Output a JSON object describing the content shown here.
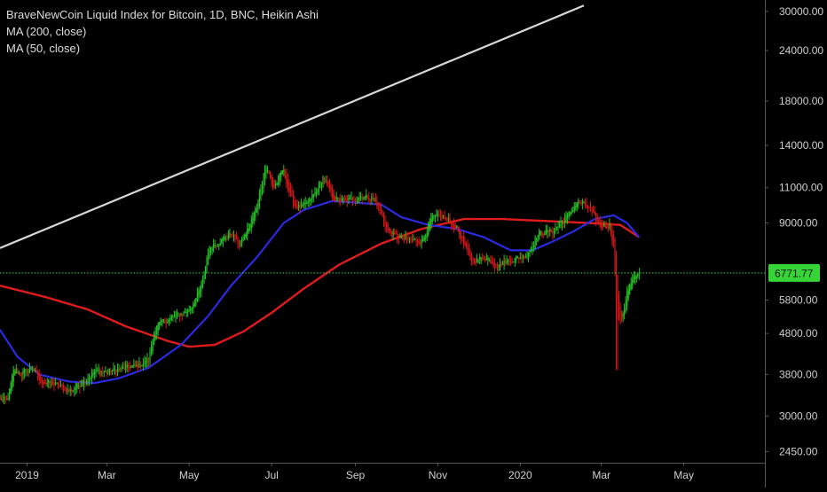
{
  "legend": {
    "title": "BraveNewCoin Liquid Index for Bitcoin, 1D, BNC, Heikin Ashi",
    "ma200": "MA (200, close)",
    "ma50": "MA (50, close)"
  },
  "colors": {
    "background": "#000000",
    "up_candle": "#26c026",
    "down_candle": "#d41818",
    "ma200": "#e01b1b",
    "ma50": "#2a2ae0",
    "trendline": "#d8d8d8",
    "price_line": "#37d437",
    "axis_text": "#cfcfcf",
    "axis_line": "#555555"
  },
  "price_axis": {
    "labels": [
      "30000.00",
      "24000.00",
      "18000.00",
      "14000.00",
      "11000.00",
      "9000.00",
      "6771.77",
      "5800.00",
      "4800.00",
      "3800.00",
      "3000.00",
      "2450.00"
    ]
  },
  "time_axis": {
    "labels": [
      "2019",
      "Mar",
      "May",
      "Jul",
      "Sep",
      "Nov",
      "2020",
      "Mar",
      "May"
    ]
  },
  "last_price": "6771.77",
  "chart_data": {
    "type": "candlestick",
    "symbol": "BraveNewCoin Liquid Index for Bitcoin",
    "interval": "1D",
    "style": "Heikin Ashi",
    "y_scale": "log",
    "ylim": [
      2300,
      32000
    ],
    "y_ticks": [
      30000,
      24000,
      18000,
      14000,
      11000,
      9000,
      5800,
      4800,
      3800,
      3000,
      2450
    ],
    "x_range": [
      "2018-12-12",
      "2020-06-30"
    ],
    "x_ticks": [
      {
        "label": "2019",
        "date": "2019-01-01"
      },
      {
        "label": "Mar",
        "date": "2019-03-01"
      },
      {
        "label": "May",
        "date": "2019-05-01"
      },
      {
        "label": "Jul",
        "date": "2019-07-01"
      },
      {
        "label": "Sep",
        "date": "2019-09-01"
      },
      {
        "label": "Nov",
        "date": "2019-11-01"
      },
      {
        "label": "2020",
        "date": "2020-01-01"
      },
      {
        "label": "Mar",
        "date": "2020-03-01"
      },
      {
        "label": "May",
        "date": "2020-05-01"
      }
    ],
    "close_keypoints": [
      [
        "2018-12-12",
        3300
      ],
      [
        "2018-12-17",
        3250
      ],
      [
        "2018-12-22",
        3950
      ],
      [
        "2018-12-27",
        3800
      ],
      [
        "2019-01-05",
        3950
      ],
      [
        "2019-01-10",
        3650
      ],
      [
        "2019-01-20",
        3600
      ],
      [
        "2019-02-01",
        3450
      ],
      [
        "2019-02-10",
        3620
      ],
      [
        "2019-02-20",
        3880
      ],
      [
        "2019-03-01",
        3850
      ],
      [
        "2019-03-15",
        3950
      ],
      [
        "2019-03-25",
        4000
      ],
      [
        "2019-04-01",
        4150
      ],
      [
        "2019-04-05",
        5000
      ],
      [
        "2019-04-20",
        5300
      ],
      [
        "2019-05-01",
        5500
      ],
      [
        "2019-05-10",
        6300
      ],
      [
        "2019-05-15",
        7900
      ],
      [
        "2019-05-25",
        8200
      ],
      [
        "2019-06-01",
        8500
      ],
      [
        "2019-06-07",
        7900
      ],
      [
        "2019-06-15",
        9000
      ],
      [
        "2019-06-20",
        10000
      ],
      [
        "2019-06-26",
        12800
      ],
      [
        "2019-07-02",
        10800
      ],
      [
        "2019-07-09",
        12300
      ],
      [
        "2019-07-17",
        9800
      ],
      [
        "2019-07-25",
        9900
      ],
      [
        "2019-08-03",
        10800
      ],
      [
        "2019-08-08",
        11800
      ],
      [
        "2019-08-15",
        10300
      ],
      [
        "2019-08-25",
        10200
      ],
      [
        "2019-09-05",
        10500
      ],
      [
        "2019-09-15",
        10300
      ],
      [
        "2019-09-25",
        8500
      ],
      [
        "2019-10-05",
        8200
      ],
      [
        "2019-10-20",
        8100
      ],
      [
        "2019-10-27",
        9300
      ],
      [
        "2019-11-05",
        9300
      ],
      [
        "2019-11-15",
        8700
      ],
      [
        "2019-11-25",
        7200
      ],
      [
        "2019-12-05",
        7400
      ],
      [
        "2019-12-15",
        7100
      ],
      [
        "2019-12-25",
        7300
      ],
      [
        "2020-01-05",
        7500
      ],
      [
        "2020-01-14",
        8500
      ],
      [
        "2020-01-25",
        8600
      ],
      [
        "2020-02-05",
        9400
      ],
      [
        "2020-02-12",
        10200
      ],
      [
        "2020-02-20",
        9800
      ],
      [
        "2020-02-28",
        8800
      ],
      [
        "2020-03-07",
        8900
      ],
      [
        "2020-03-10",
        7800
      ],
      [
        "2020-03-12",
        5200
      ],
      [
        "2020-03-13",
        4800
      ],
      [
        "2020-03-16",
        5200
      ],
      [
        "2020-03-20",
        6200
      ],
      [
        "2020-03-25",
        6600
      ],
      [
        "2020-03-29",
        6771.77
      ]
    ],
    "ma50": [
      [
        "2018-12-12",
        4900
      ],
      [
        "2018-12-25",
        4200
      ],
      [
        "2019-01-10",
        3800
      ],
      [
        "2019-02-01",
        3650
      ],
      [
        "2019-02-20",
        3620
      ],
      [
        "2019-03-10",
        3720
      ],
      [
        "2019-04-01",
        3950
      ],
      [
        "2019-04-25",
        4500
      ],
      [
        "2019-05-15",
        5300
      ],
      [
        "2019-06-01",
        6300
      ],
      [
        "2019-06-20",
        7400
      ],
      [
        "2019-07-10",
        9000
      ],
      [
        "2019-07-25",
        9700
      ],
      [
        "2019-08-15",
        10200
      ],
      [
        "2019-09-01",
        10100
      ],
      [
        "2019-09-20",
        10000
      ],
      [
        "2019-10-05",
        9300
      ],
      [
        "2019-10-25",
        8900
      ],
      [
        "2019-11-15",
        8700
      ],
      [
        "2019-12-05",
        8300
      ],
      [
        "2019-12-25",
        7700
      ],
      [
        "2020-01-10",
        7700
      ],
      [
        "2020-01-25",
        8100
      ],
      [
        "2020-02-10",
        8600
      ],
      [
        "2020-02-25",
        9200
      ],
      [
        "2020-03-10",
        9400
      ],
      [
        "2020-03-20",
        9000
      ],
      [
        "2020-03-29",
        8300
      ]
    ],
    "ma200": [
      [
        "2018-12-12",
        6300
      ],
      [
        "2019-01-15",
        5900
      ],
      [
        "2019-02-15",
        5500
      ],
      [
        "2019-03-15",
        5000
      ],
      [
        "2019-04-15",
        4600
      ],
      [
        "2019-05-01",
        4450
      ],
      [
        "2019-05-20",
        4500
      ],
      [
        "2019-06-10",
        4850
      ],
      [
        "2019-07-01",
        5400
      ],
      [
        "2019-07-25",
        6200
      ],
      [
        "2019-08-20",
        7100
      ],
      [
        "2019-09-20",
        8000
      ],
      [
        "2019-10-20",
        8700
      ],
      [
        "2019-11-20",
        9200
      ],
      [
        "2019-12-20",
        9200
      ],
      [
        "2020-01-20",
        9100
      ],
      [
        "2020-02-20",
        9000
      ],
      [
        "2020-03-15",
        8900
      ],
      [
        "2020-03-29",
        8300
      ]
    ],
    "trendline": [
      [
        "2018-12-12",
        7800
      ],
      [
        "2020-02-17",
        31000
      ]
    ],
    "horizontal_line": {
      "price": 6771.77,
      "style": "dotted"
    }
  }
}
